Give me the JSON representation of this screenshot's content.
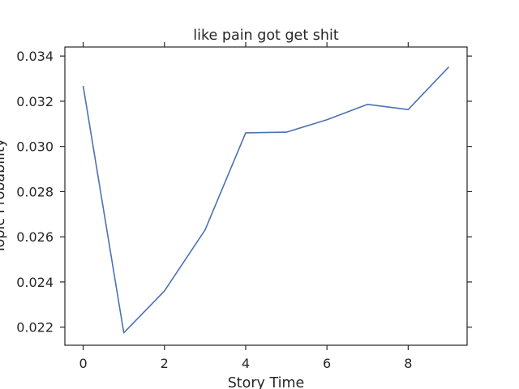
{
  "chart_data": {
    "type": "line",
    "title": "like pain got get shit",
    "xlabel": "Story Time",
    "ylabel": "Topic Probability",
    "xlim": [
      -0.45,
      9.45
    ],
    "ylim": [
      0.0212,
      0.0344
    ],
    "xticks": [
      0,
      2,
      4,
      6,
      8
    ],
    "yticks": [
      0.022,
      0.024,
      0.026,
      0.028,
      0.03,
      0.032,
      0.034
    ],
    "grid": false,
    "series": [
      {
        "name": "topic",
        "color": "#4c72b0",
        "x": [
          0,
          1,
          2,
          3,
          4,
          5,
          6,
          7,
          8,
          9
        ],
        "y": [
          0.03268,
          0.02175,
          0.0236,
          0.0263,
          0.0306,
          0.03063,
          0.03118,
          0.03186,
          0.03163,
          0.03352
        ]
      }
    ]
  }
}
